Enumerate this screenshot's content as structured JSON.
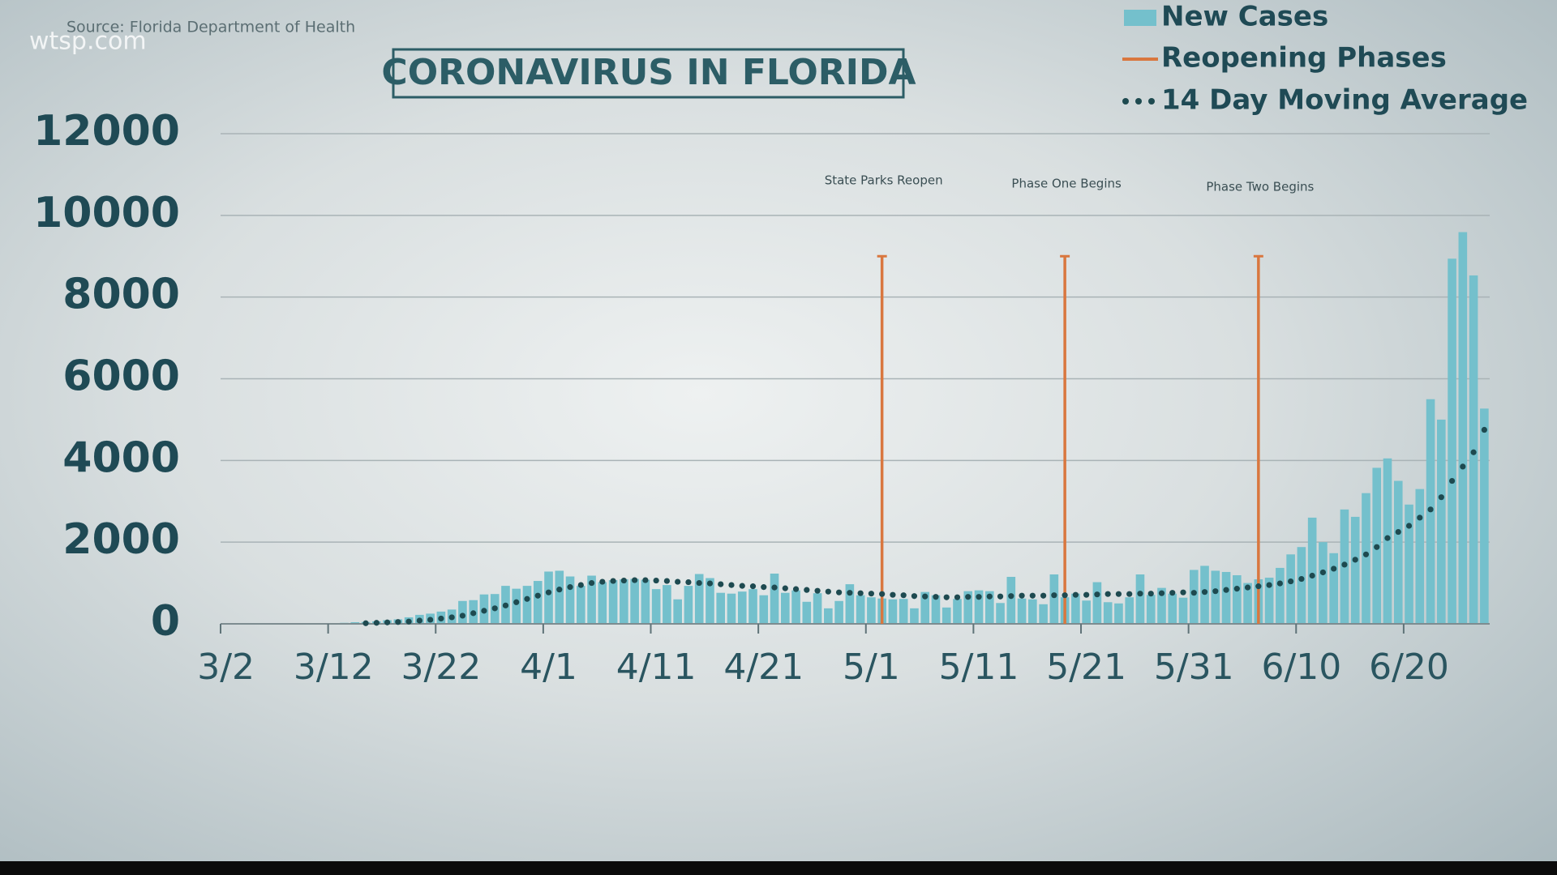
{
  "chart_data": {
    "type": "bar",
    "title": "CORONAVIRUS IN FLORIDA",
    "source": "Source: Florida Department of Health",
    "logo": "wtsp.com",
    "categories": [
      "3/2",
      null,
      null,
      null,
      null,
      null,
      null,
      null,
      null,
      null,
      "3/12",
      null,
      null,
      null,
      null,
      null,
      null,
      null,
      null,
      null,
      "3/22",
      null,
      null,
      null,
      null,
      null,
      null,
      null,
      null,
      null,
      "4/1",
      null,
      null,
      null,
      null,
      null,
      null,
      null,
      null,
      null,
      "4/11",
      null,
      null,
      null,
      null,
      null,
      null,
      null,
      null,
      null,
      "4/21",
      null,
      null,
      null,
      null,
      null,
      null,
      null,
      null,
      null,
      "5/1",
      null,
      null,
      null,
      null,
      null,
      null,
      null,
      null,
      null,
      "5/11",
      null,
      null,
      null,
      null,
      null,
      null,
      null,
      null,
      null,
      "5/21",
      null,
      null,
      null,
      null,
      null,
      null,
      null,
      null,
      null,
      "5/31",
      null,
      null,
      null,
      null,
      null,
      null,
      null,
      null,
      null,
      "6/10",
      null,
      null,
      null,
      null,
      null,
      null,
      null,
      null,
      null,
      "6/20",
      null,
      null,
      null,
      null,
      null,
      null,
      null
    ],
    "series": [
      {
        "name": "New Cases",
        "color": "#74c0cc",
        "values": [
          2,
          1,
          1,
          3,
          4,
          5,
          7,
          4,
          10,
          11,
          18,
          25,
          40,
          45,
          60,
          90,
          110,
          160,
          220,
          250,
          300,
          350,
          560,
          580,
          720,
          730,
          930,
          860,
          930,
          1050,
          1280,
          1300,
          1160,
          930,
          1180,
          1020,
          1070,
          1090,
          1100,
          1080,
          850,
          950,
          600,
          930,
          1220,
          1120,
          760,
          740,
          790,
          850,
          700,
          1230,
          760,
          820,
          540,
          750,
          380,
          560,
          970,
          700,
          650,
          620,
          600,
          610,
          380,
          780,
          700,
          400,
          610,
          800,
          820,
          800,
          510,
          1150,
          620,
          600,
          480,
          1210,
          650,
          740,
          570,
          1020,
          530,
          500,
          650,
          1210,
          710,
          880,
          740,
          640,
          1320,
          1420,
          1300,
          1270,
          1190,
          1000,
          1090,
          1130,
          1370,
          1700,
          1880,
          2600,
          2000,
          1730,
          2800,
          2620,
          3200,
          3820,
          4050,
          3500,
          2920,
          3300,
          5500,
          5000,
          8940,
          9590,
          8530,
          5270
        ]
      },
      {
        "name": "14 Day Moving Average",
        "color": "#1e4a50",
        "values": [
          null,
          null,
          null,
          null,
          null,
          null,
          null,
          null,
          null,
          null,
          null,
          null,
          null,
          15,
          25,
          35,
          45,
          55,
          80,
          100,
          130,
          160,
          200,
          260,
          320,
          380,
          450,
          530,
          610,
          690,
          770,
          840,
          900,
          950,
          1000,
          1030,
          1050,
          1060,
          1070,
          1070,
          1060,
          1050,
          1030,
          1020,
          1000,
          990,
          970,
          950,
          930,
          920,
          900,
          890,
          870,
          850,
          830,
          810,
          790,
          770,
          760,
          750,
          740,
          730,
          710,
          700,
          680,
          670,
          660,
          650,
          650,
          660,
          660,
          670,
          670,
          680,
          690,
          690,
          690,
          700,
          700,
          710,
          710,
          720,
          730,
          730,
          730,
          740,
          740,
          750,
          760,
          770,
          760,
          780,
          800,
          830,
          860,
          890,
          920,
          950,
          990,
          1040,
          1100,
          1180,
          1260,
          1350,
          1450,
          1570,
          1700,
          1880,
          2100,
          2250,
          2400,
          2600,
          2800,
          3100,
          3500,
          3850,
          4200,
          4750
        ]
      }
    ],
    "phases": {
      "name": "Reopening Phases",
      "color": "#d9773f",
      "items": [
        {
          "label": "State Parks Reopen",
          "x": 61,
          "value": 9000
        },
        {
          "label": "Phase One Begins",
          "x": 78,
          "value": 9000
        },
        {
          "label": "Phase Two Begins",
          "x": 96,
          "value": 9000
        }
      ]
    },
    "ylim": [
      0,
      12000
    ],
    "yticks": [
      0,
      2000,
      4000,
      6000,
      8000,
      10000,
      12000
    ],
    "grid": true
  }
}
